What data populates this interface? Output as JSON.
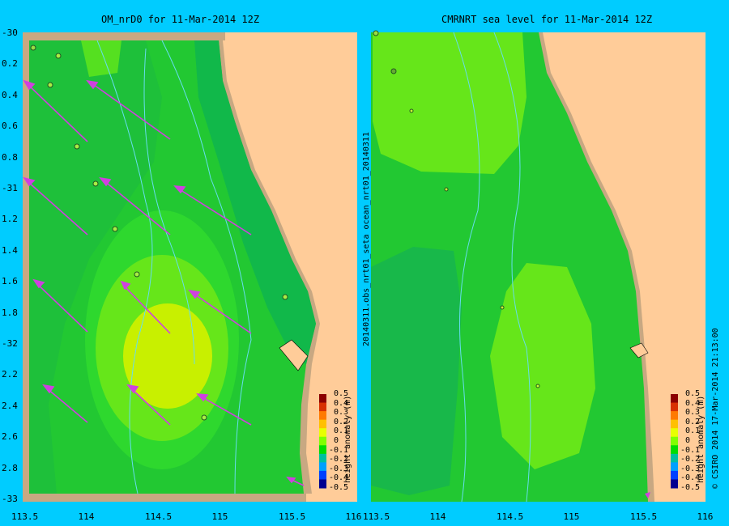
{
  "left_panel": {
    "title": "OM_nrD0 for 11-Mar-2014 12Z",
    "lat_ticks": [
      "-30",
      "0.2",
      "0.4",
      "0.6",
      "0.8",
      "-31",
      "1.2",
      "1.4",
      "1.6",
      "1.8",
      "-32",
      "2.2",
      "2.4",
      "2.6",
      "2.8",
      "-33"
    ],
    "lon_ticks": [
      "113.5",
      "114",
      "114.5",
      "115",
      "115.5",
      "116"
    ]
  },
  "right_panel": {
    "title": "CMRNRT sea level  for 11-Mar-2014 12Z",
    "lon_ticks": [
      "113.5",
      "114",
      "114.5",
      "115",
      "115.5",
      "116"
    ],
    "side_label": "20140311.obs_nrt01_seta     ocean_nrt01_20140311"
  },
  "colorbar": {
    "label": "height anomaly (m)",
    "ticks": [
      "0.5",
      "0.4",
      "0.3",
      "0.2",
      "0.1",
      "0",
      "-0.1",
      "-0.2",
      "-0.3",
      "-0.4",
      "-0.5"
    ],
    "colors": [
      "#8b0000",
      "#d83000",
      "#ff7a00",
      "#ffc000",
      "#e8ff00",
      "#80ff00",
      "#00dd00",
      "#00bfa0",
      "#00a0ff",
      "#0040ff",
      "#000090"
    ]
  },
  "credit": "© CSIRO 2014   17-Mar-2014 21:13:00",
  "colors": {
    "background": "#00ccff",
    "land": "#ffcc99",
    "shelf_land": "#c8a882",
    "ocean_base": "#22c832",
    "arrow": "#d040e0"
  }
}
